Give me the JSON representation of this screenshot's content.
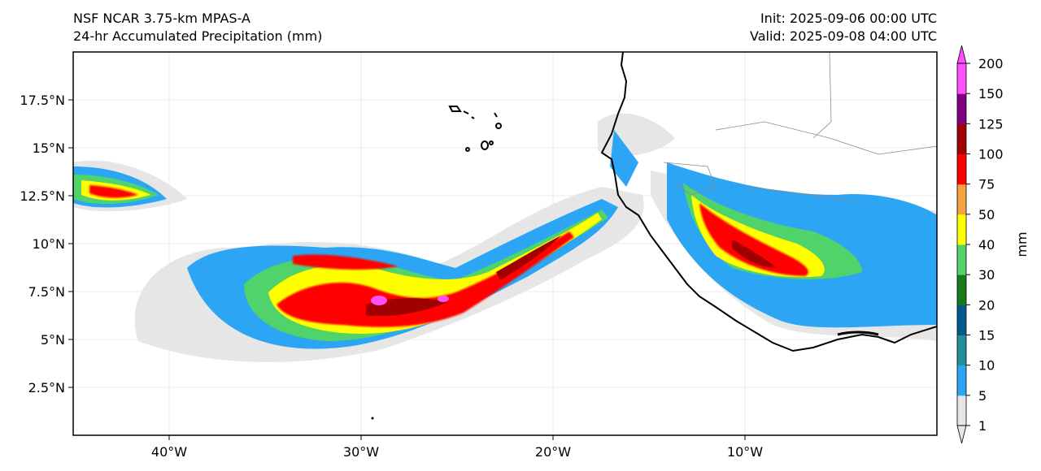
{
  "header": {
    "model": "NSF NCAR 3.75-km MPAS-A",
    "field": "24-hr Accumulated Precipitation (mm)",
    "init": "Init: 2025-09-06 00:00 UTC",
    "valid": "Valid: 2025-09-08 04:00 UTC"
  },
  "map": {
    "lon_range": [
      -45,
      0
    ],
    "lat_range": [
      0,
      20
    ],
    "lat_ticks": [
      {
        "value": 2.5,
        "label": "2.5°N"
      },
      {
        "value": 5,
        "label": "5°N"
      },
      {
        "value": 7.5,
        "label": "7.5°N"
      },
      {
        "value": 10,
        "label": "10°N"
      },
      {
        "value": 12.5,
        "label": "12.5°N"
      },
      {
        "value": 15,
        "label": "15°N"
      },
      {
        "value": 17.5,
        "label": "17.5°N"
      }
    ],
    "lon_ticks": [
      {
        "value": -40,
        "label": "40°W"
      },
      {
        "value": -30,
        "label": "30°W"
      },
      {
        "value": -20,
        "label": "20°W"
      },
      {
        "value": -10,
        "label": "10°W"
      }
    ],
    "gridlines": true
  },
  "colorbar": {
    "unit": "mm",
    "levels": [
      "1",
      "5",
      "10",
      "15",
      "20",
      "30",
      "40",
      "50",
      "75",
      "100",
      "125",
      "150",
      "200"
    ],
    "colors": [
      "#e6e6e6",
      "#2ca6f4",
      "#1f8f9a",
      "#045a8d",
      "#1a7a1a",
      "#4fd36a",
      "#ffff00",
      "#f4a340",
      "#ff0000",
      "#a00000",
      "#800080",
      "#ff4fff"
    ],
    "extend": "both"
  }
}
